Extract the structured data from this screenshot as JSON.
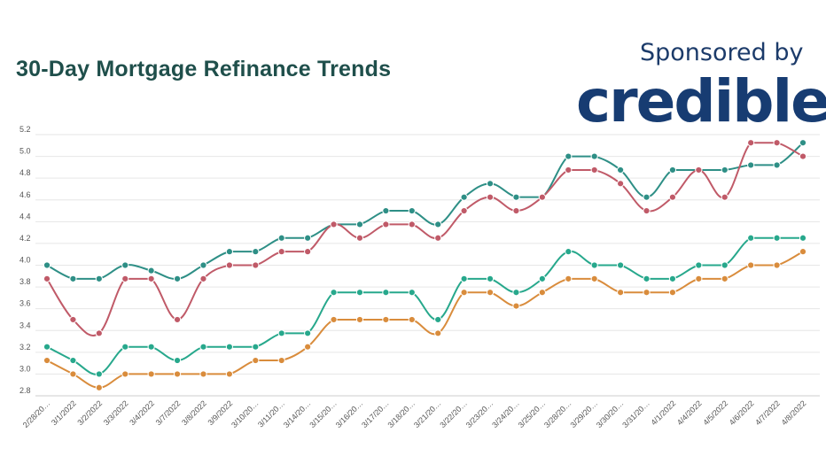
{
  "chart_data": {
    "type": "line",
    "title": "30-Day Mortgage Refinance Trends",
    "xlabel": "",
    "ylabel": "",
    "ylim": [
      2.8,
      5.2
    ],
    "yticks": [
      "2.8",
      "3.0",
      "3.2",
      "3.4",
      "3.6",
      "3.8",
      "4.0",
      "4.2",
      "4.4",
      "4.6",
      "4.8",
      "5.0",
      "5.2"
    ],
    "grid": true,
    "smooth": true,
    "categories": [
      "2/28/20…",
      "3/1/2022",
      "3/2/2022",
      "3/3/2022",
      "3/4/2022",
      "3/7/2022",
      "3/8/2022",
      "3/9/2022",
      "3/10/20…",
      "3/11/20…",
      "3/14/20…",
      "3/15/20…",
      "3/16/20…",
      "3/17/20…",
      "3/18/20…",
      "3/21/20…",
      "3/22/20…",
      "3/23/20…",
      "3/24/20…",
      "3/25/20…",
      "3/28/20…",
      "3/29/20…",
      "3/30/20…",
      "3/31/20…",
      "4/1/2022",
      "4/4/2022",
      "4/5/2022",
      "4/6/2022",
      "4/7/2022",
      "4/8/2022"
    ],
    "series": [
      {
        "color": "#2e8f86",
        "values": [
          4.0,
          3.875,
          3.875,
          4.0,
          3.95,
          3.875,
          4.0,
          4.125,
          4.125,
          4.25,
          4.25,
          4.375,
          4.375,
          4.5,
          4.5,
          4.375,
          4.625,
          4.75,
          4.625,
          4.625,
          5.0,
          5.0,
          4.875,
          4.625,
          4.875,
          4.875,
          4.875,
          4.92,
          4.92,
          5.125
        ]
      },
      {
        "color": "#c05a68",
        "values": [
          3.875,
          3.5,
          3.375,
          3.875,
          3.875,
          3.5,
          3.875,
          4.0,
          4.0,
          4.125,
          4.125,
          4.375,
          4.25,
          4.375,
          4.375,
          4.25,
          4.5,
          4.625,
          4.5,
          4.625,
          4.875,
          4.875,
          4.75,
          4.5,
          4.625,
          4.875,
          4.625,
          5.125,
          5.125,
          5.0
        ]
      },
      {
        "color": "#27a88c",
        "values": [
          3.25,
          3.125,
          3.0,
          3.25,
          3.25,
          3.125,
          3.25,
          3.25,
          3.25,
          3.375,
          3.375,
          3.75,
          3.75,
          3.75,
          3.75,
          3.5,
          3.875,
          3.875,
          3.75,
          3.875,
          4.125,
          4.0,
          4.0,
          3.875,
          3.875,
          4.0,
          4.0,
          4.25,
          4.25,
          4.25
        ]
      },
      {
        "color": "#d98c3c",
        "values": [
          3.125,
          3.0,
          2.875,
          3.0,
          3.0,
          3.0,
          3.0,
          3.0,
          3.125,
          3.125,
          3.25,
          3.5,
          3.5,
          3.5,
          3.5,
          3.375,
          3.75,
          3.75,
          3.625,
          3.75,
          3.875,
          3.875,
          3.75,
          3.75,
          3.75,
          3.875,
          3.875,
          4.0,
          4.0,
          4.125
        ]
      }
    ]
  },
  "sponsor": {
    "label": "Sponsored by",
    "brand": "credible",
    "brand_color": "#173c72"
  }
}
